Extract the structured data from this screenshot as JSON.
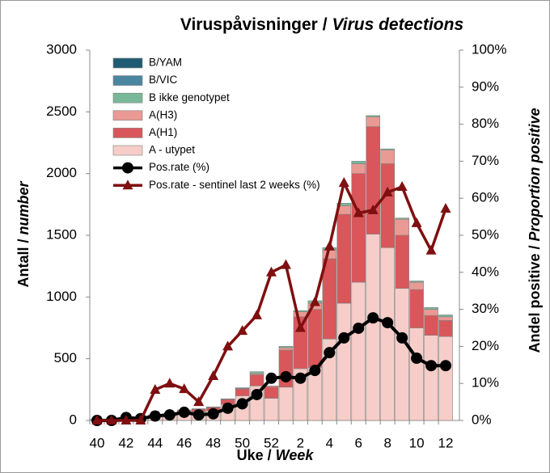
{
  "chart_data": {
    "type": "bar",
    "title_parts": [
      "Viruspåvisninger /",
      "Virus detections"
    ],
    "y_label_parts": [
      "Antall /",
      "number"
    ],
    "x_label_parts": [
      "Uke /",
      "Week"
    ],
    "y2_label_parts": [
      "Andel positive /",
      "Proportion positive"
    ],
    "categories": [
      "40",
      null,
      "42",
      null,
      "44",
      null,
      "46",
      null,
      "48",
      null,
      "50",
      null,
      "52",
      null,
      "2",
      null,
      "4",
      null,
      "6",
      null,
      "8",
      null,
      "10",
      null,
      "12"
    ],
    "ylim": [
      0,
      3000
    ],
    "yticks": [
      0,
      500,
      1000,
      1500,
      2000,
      2500,
      3000
    ],
    "y2lim": [
      0,
      100
    ],
    "y2ticks": [
      {
        "value": 0,
        "label": "0%"
      },
      {
        "value": 10,
        "label": "10%"
      },
      {
        "value": 20,
        "label": "20%"
      },
      {
        "value": 30,
        "label": "30%"
      },
      {
        "value": 40,
        "label": "40%"
      },
      {
        "value": 50,
        "label": "50%"
      },
      {
        "value": 60,
        "label": "60%"
      },
      {
        "value": 70,
        "label": "70%"
      },
      {
        "value": 80,
        "label": "80%"
      },
      {
        "value": 90,
        "label": "90%"
      },
      {
        "value": 100,
        "label": "100%"
      }
    ],
    "legend": "upper left",
    "series": [
      {
        "name": "A - utypet",
        "type": "bar",
        "color": "#f6cdc8",
        "values": [
          5,
          8,
          12,
          15,
          30,
          40,
          60,
          70,
          80,
          130,
          200,
          280,
          180,
          270,
          420,
          430,
          660,
          950,
          1120,
          1510,
          1400,
          1070,
          750,
          690,
          680
        ]
      },
      {
        "name": "A(H1)",
        "type": "bar",
        "color": "#d9575a",
        "values": [
          2,
          3,
          5,
          5,
          12,
          12,
          20,
          20,
          25,
          40,
          55,
          90,
          90,
          300,
          420,
          470,
          650,
          720,
          880,
          870,
          680,
          430,
          310,
          160,
          130
        ]
      },
      {
        "name": "A(H3)",
        "type": "bar",
        "color": "#e99a94",
        "values": [
          1,
          1,
          1,
          1,
          2,
          2,
          3,
          3,
          3,
          3,
          5,
          10,
          10,
          20,
          40,
          50,
          70,
          70,
          80,
          80,
          110,
          130,
          60,
          50,
          30
        ]
      },
      {
        "name": "B ikke genotypet",
        "type": "bar",
        "color": "#79b89a",
        "values": [
          0,
          0,
          0,
          1,
          1,
          1,
          2,
          2,
          2,
          2,
          5,
          15,
          0,
          10,
          10,
          20,
          20,
          20,
          20,
          10,
          10,
          10,
          10,
          15,
          15
        ]
      },
      {
        "name": "B/VIC",
        "type": "bar",
        "color": "#4a86a0",
        "values": [
          0,
          0,
          0,
          0,
          0,
          0,
          0,
          0,
          0,
          0,
          0,
          0,
          0,
          0,
          0,
          0,
          0,
          0,
          0,
          0,
          0,
          0,
          0,
          0,
          0
        ]
      },
      {
        "name": "B/YAM",
        "type": "bar",
        "color": "#1f5c73",
        "values": [
          0,
          0,
          0,
          0,
          0,
          0,
          0,
          0,
          0,
          0,
          0,
          0,
          0,
          0,
          0,
          0,
          0,
          0,
          0,
          0,
          0,
          0,
          0,
          0,
          0
        ]
      },
      {
        "name": "Pos.rate (%)",
        "type": "line",
        "marker": "circle",
        "axis": "y2",
        "color": "#000000",
        "values": [
          0,
          0,
          0.8,
          0.5,
          1.2,
          1.5,
          2.2,
          1.5,
          1.8,
          3.3,
          4.5,
          7,
          11.4,
          11.8,
          11.4,
          13.5,
          18.3,
          22.3,
          24.9,
          27.7,
          26.4,
          22.3,
          16.8,
          14.8,
          14.8
        ]
      },
      {
        "name": "Pos.rate - sentinel last 2 weeks (%)",
        "type": "line",
        "marker": "triangle",
        "axis": "y2",
        "color": "#7f0f10",
        "values": [
          0,
          0,
          0,
          0,
          8.3,
          10,
          8.5,
          5,
          12,
          20,
          24.2,
          28.4,
          40,
          42,
          25,
          32,
          47,
          64.2,
          56,
          56.8,
          61.6,
          63.1,
          53.3,
          45.9,
          57.2
        ]
      }
    ]
  }
}
